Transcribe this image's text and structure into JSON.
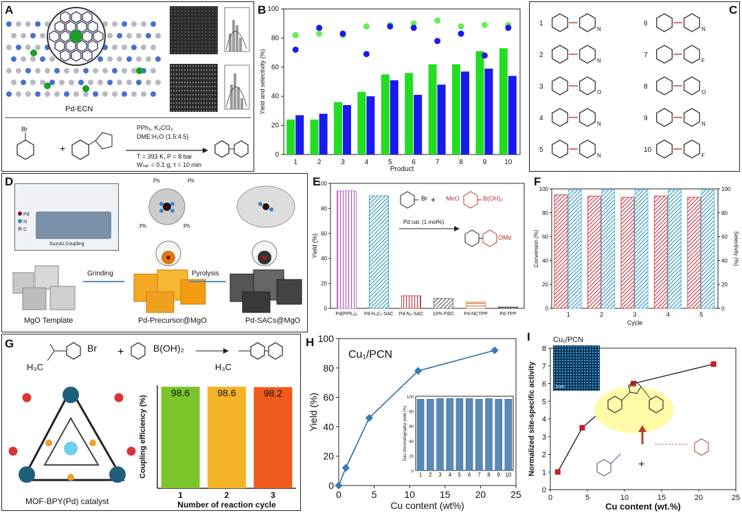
{
  "panels": {
    "A": {
      "letter": "A",
      "caption": "Pd-ECN",
      "conditions": [
        "PPh₃, K₂CO₃",
        "DME:H₂O (1.5:4.5)",
        "T = 393 K, P = 8 bar",
        "Wₙₐₜ = 0.1 g, τ = 10 min"
      ],
      "reactant_label": "Br"
    },
    "B": {
      "letter": "B"
    },
    "C": {
      "letter": "C",
      "numbers": [
        "1",
        "2",
        "3",
        "4",
        "5",
        "6",
        "7",
        "8",
        "9",
        "10"
      ],
      "atoms": [
        "N",
        "N",
        "O",
        "N",
        "N",
        "N",
        "F",
        "O",
        "N",
        "F"
      ]
    },
    "D": {
      "letter": "D",
      "legend_title": "Suzuki Coupling",
      "legend_items": [
        "Pd",
        "N",
        "C"
      ],
      "stages": [
        "MgO Template",
        "Pd-Precursor@MgO",
        "Pd-SACs@MgO"
      ],
      "arrows": [
        "Grinding",
        "Pyrolysis"
      ],
      "ph": "Ph"
    },
    "E": {
      "letter": "E",
      "reaction": [
        "Br",
        "MeO",
        "B(OH)₂",
        "Pd cat. (1 mol%)",
        "OMe"
      ]
    },
    "F": {
      "letter": "F"
    },
    "G": {
      "letter": "G",
      "reactants": [
        "Br",
        "B(OH)₂",
        "H₃C",
        "H₃C"
      ],
      "catalyst_label": "MOF-BPY(Pd) catalyst"
    },
    "H": {
      "letter": "H",
      "inset_title": "Cu₁/PCN"
    },
    "I": {
      "letter": "I",
      "inset_title": "Cu₁/PCN",
      "scale_bar": "1nm"
    }
  },
  "chart_data": [
    {
      "id": "B",
      "type": "bar",
      "categories": [
        "1",
        "2",
        "3",
        "4",
        "5",
        "6",
        "7",
        "8",
        "9",
        "10"
      ],
      "series": [
        {
          "values": [
            24,
            24,
            36,
            43,
            55,
            56,
            62,
            62,
            71,
            73
          ],
          "color": "#22dd22"
        },
        {
          "values": [
            27,
            28,
            34,
            40,
            51,
            41,
            48,
            57,
            59,
            54
          ],
          "color": "#1a1aee"
        }
      ],
      "overlay_points": [
        {
          "values": [
            82,
            83,
            82,
            88,
            89,
            90,
            92,
            88,
            89,
            89
          ],
          "color": "#66ee55"
        },
        {
          "values": [
            72,
            87,
            83,
            69,
            88,
            87,
            78,
            83,
            68,
            87
          ],
          "color": "#1a1aee"
        }
      ],
      "xlabel": "Product",
      "ylabel": "Yield and selectivity (%)",
      "ylim": [
        0,
        100
      ],
      "yticks": [
        "0",
        "20",
        "40",
        "60",
        "80",
        "100"
      ]
    },
    {
      "id": "E",
      "type": "bar",
      "categories": [
        "Pd(PPh₃)₄",
        "Pd-N₃C₁-SAC",
        "Pd-N₄-SAC",
        "10% Pd/C",
        "Pd-NCTPP",
        "Pd-TPP"
      ],
      "values": [
        94,
        90,
        10,
        8,
        5,
        1
      ],
      "colors": [
        "#c873d6",
        "#3aa6c9",
        "#d24a57",
        "#777777",
        "#e58a4a",
        "#333333"
      ],
      "ylabel": "Yield (%)",
      "ylim": [
        0,
        100
      ],
      "yticks": [
        "0",
        "20",
        "40",
        "60",
        "80",
        "100"
      ]
    },
    {
      "id": "F",
      "type": "bar",
      "categories": [
        "1",
        "2",
        "3",
        "4",
        "5"
      ],
      "series": [
        {
          "values": [
            95,
            94,
            93,
            94,
            93
          ],
          "color": "#d24a57"
        },
        {
          "values": [
            99,
            99,
            99,
            99,
            99
          ],
          "color": "#5bc3d9"
        }
      ],
      "xlabel": "Cycle",
      "ylabel": "Conversion (%)",
      "y2label": "Selectivity (%)",
      "ylim": [
        0,
        100
      ],
      "yticks": [
        "0",
        "20",
        "40",
        "60",
        "80",
        "100"
      ]
    },
    {
      "id": "G",
      "type": "bar",
      "categories": [
        "1",
        "2",
        "3"
      ],
      "values": [
        98.6,
        98.6,
        98.2
      ],
      "labels": [
        "98.6",
        "98.6",
        "98.2"
      ],
      "colors": [
        "#7bc42b",
        "#f5b327",
        "#f05a1a"
      ],
      "xlabel": "Number of reaction cycle",
      "ylabel": "Coupling efficiency (%)"
    },
    {
      "id": "H",
      "type": "line",
      "x": [
        0,
        1,
        4.3,
        11.2,
        22
      ],
      "y": [
        0,
        12,
        46,
        78,
        92
      ],
      "title": "Cu₁/PCN",
      "xlabel": "Cu content (wt%)",
      "ylabel": "Yield (%)",
      "xlim": [
        0,
        25
      ],
      "ylim": [
        0,
        100
      ],
      "xticks": [
        "0",
        "5",
        "10",
        "15",
        "20",
        "25"
      ],
      "yticks": [
        "0",
        "20",
        "40",
        "60",
        "80",
        "100"
      ],
      "inset": {
        "type": "bar",
        "categories": [
          "1",
          "2",
          "3",
          "4",
          "5",
          "6",
          "7",
          "8",
          "9",
          "10"
        ],
        "values": [
          96,
          96,
          97,
          97,
          97,
          97,
          96,
          97,
          96,
          96
        ],
        "ylim": [
          0,
          100
        ],
        "ylabel": "Gas chromatography yield (%)",
        "yticks": [
          "0",
          "20",
          "40",
          "60",
          "80",
          "100"
        ]
      }
    },
    {
      "id": "I",
      "type": "line",
      "x": [
        1,
        4.3,
        11.2,
        22
      ],
      "y": [
        1,
        3.5,
        6,
        7.1
      ],
      "xlabel": "Cu content (wt.%)",
      "ylabel": "Normalized site-specific activity",
      "xlim": [
        0,
        25
      ],
      "ylim": [
        0,
        8
      ],
      "xticks": [
        "0",
        "5",
        "10",
        "15",
        "20",
        "25"
      ],
      "yticks": [
        "0",
        "1",
        "2",
        "3",
        "4",
        "5",
        "6",
        "7",
        "8"
      ]
    }
  ]
}
